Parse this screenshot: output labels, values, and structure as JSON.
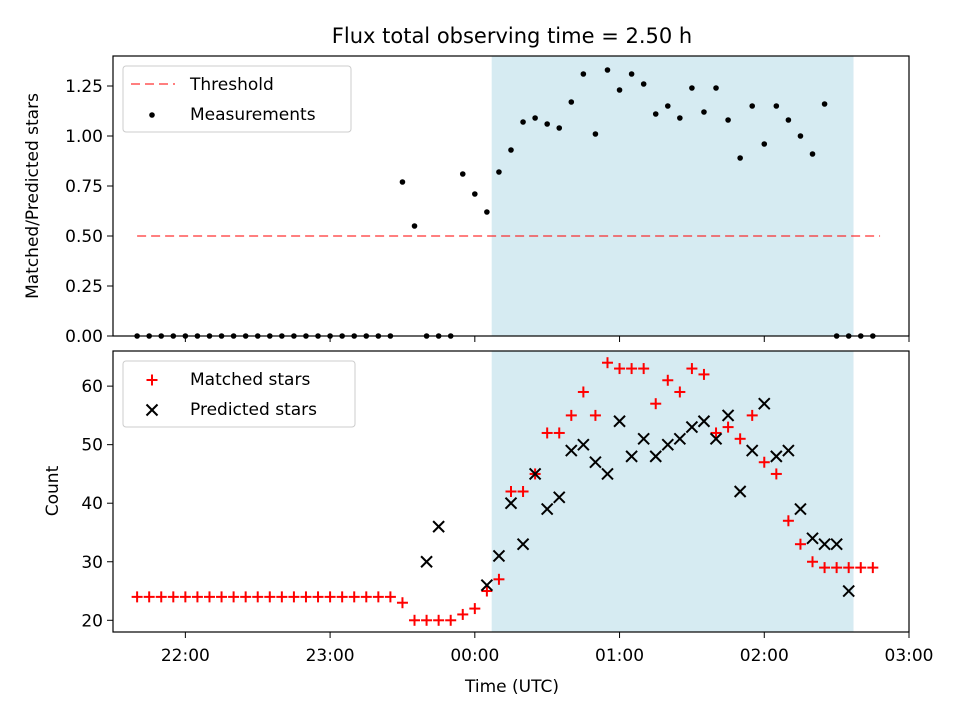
{
  "title": "Flux total observing time = 2.50 h",
  "colors": {
    "shade": "#add8e6",
    "threshold": "#ff0000",
    "measurement": "#000000",
    "matched": "#ff0000",
    "predicted": "#000000"
  },
  "chart_data": [
    {
      "type": "scatter",
      "panel": "top",
      "ylabel": "Matched/Predicted stars",
      "ylim": [
        0,
        1.4
      ],
      "yticks": [
        0.0,
        0.25,
        0.5,
        0.75,
        1.0,
        1.25
      ],
      "ytick_labels": [
        "0.00",
        "0.25",
        "0.50",
        "0.75",
        "1.00",
        "1.25"
      ],
      "xlim": [
        "21:30",
        "03:00"
      ],
      "shaded_range": [
        "00:07",
        "02:37"
      ],
      "legend_position": "upper left",
      "threshold": {
        "name": "Threshold",
        "value": 0.5,
        "x_range": [
          "21:40",
          "02:48"
        ],
        "style": "dashed"
      },
      "series": [
        {
          "name": "Measurements",
          "marker": "dot",
          "x": [
            "21:40",
            "21:45",
            "21:50",
            "21:55",
            "22:00",
            "22:05",
            "22:10",
            "22:15",
            "22:20",
            "22:25",
            "22:30",
            "22:35",
            "22:40",
            "22:45",
            "22:50",
            "22:55",
            "23:00",
            "23:05",
            "23:10",
            "23:15",
            "23:20",
            "23:25",
            "23:30",
            "23:35",
            "23:40",
            "23:45",
            "23:50",
            "23:55",
            "00:00",
            "00:05",
            "00:10",
            "00:15",
            "00:20",
            "00:25",
            "00:30",
            "00:35",
            "00:40",
            "00:45",
            "00:50",
            "00:55",
            "01:00",
            "01:05",
            "01:10",
            "01:15",
            "01:20",
            "01:25",
            "01:30",
            "01:35",
            "01:40",
            "01:45",
            "01:50",
            "01:55",
            "02:00",
            "02:05",
            "02:10",
            "02:15",
            "02:20",
            "02:25",
            "02:30",
            "02:35",
            "02:40",
            "02:45"
          ],
          "y": [
            0,
            0,
            0,
            0,
            0,
            0,
            0,
            0,
            0,
            0,
            0,
            0,
            0,
            0,
            0,
            0,
            0,
            0,
            0,
            0,
            0,
            0,
            0.77,
            0.55,
            0,
            0,
            0,
            0.81,
            0.71,
            0.62,
            0.82,
            0.93,
            1.07,
            1.09,
            1.06,
            1.04,
            1.17,
            1.31,
            1.01,
            1.33,
            1.23,
            1.31,
            1.26,
            1.11,
            1.15,
            1.09,
            1.24,
            1.12,
            1.24,
            1.08,
            0.89,
            1.15,
            0.96,
            1.15,
            1.08,
            1.0,
            0.91,
            1.16,
            0,
            0,
            0,
            0
          ]
        }
      ]
    },
    {
      "type": "scatter",
      "panel": "bottom",
      "xlabel": "Time (UTC)",
      "ylabel": "Count",
      "ylim": [
        18,
        66
      ],
      "yticks": [
        20,
        30,
        40,
        50,
        60
      ],
      "xlim": [
        "21:30",
        "03:00"
      ],
      "xticks": [
        "22:00",
        "23:00",
        "00:00",
        "01:00",
        "02:00",
        "03:00"
      ],
      "shaded_range": [
        "00:07",
        "02:37"
      ],
      "legend_position": "upper left",
      "series": [
        {
          "name": "Matched stars",
          "marker": "plus",
          "x": [
            "21:40",
            "21:45",
            "21:50",
            "21:55",
            "22:00",
            "22:05",
            "22:10",
            "22:15",
            "22:20",
            "22:25",
            "22:30",
            "22:35",
            "22:40",
            "22:45",
            "22:50",
            "22:55",
            "23:00",
            "23:05",
            "23:10",
            "23:15",
            "23:20",
            "23:25",
            "23:30",
            "23:35",
            "23:40",
            "23:45",
            "23:50",
            "23:55",
            "00:00",
            "00:05",
            "00:10",
            "00:15",
            "00:20",
            "00:25",
            "00:30",
            "00:35",
            "00:40",
            "00:45",
            "00:50",
            "00:55",
            "01:00",
            "01:05",
            "01:10",
            "01:15",
            "01:20",
            "01:25",
            "01:30",
            "01:35",
            "01:40",
            "01:45",
            "01:50",
            "01:55",
            "02:00",
            "02:05",
            "02:10",
            "02:15",
            "02:20",
            "02:25",
            "02:30",
            "02:35",
            "02:40",
            "02:45"
          ],
          "y": [
            24,
            24,
            24,
            24,
            24,
            24,
            24,
            24,
            24,
            24,
            24,
            24,
            24,
            24,
            24,
            24,
            24,
            24,
            24,
            24,
            24,
            24,
            23,
            20,
            20,
            20,
            20,
            21,
            22,
            25,
            27,
            42,
            42,
            45,
            52,
            52,
            55,
            59,
            55,
            64,
            63,
            63,
            63,
            57,
            61,
            59,
            63,
            62,
            52,
            53,
            51,
            55,
            47,
            45,
            37,
            33,
            30,
            29,
            29,
            29,
            29,
            29
          ]
        },
        {
          "name": "Predicted stars",
          "marker": "x",
          "x": [
            "23:40",
            "23:45",
            "00:05",
            "00:10",
            "00:15",
            "00:20",
            "00:25",
            "00:30",
            "00:35",
            "00:40",
            "00:45",
            "00:50",
            "00:55",
            "01:00",
            "01:05",
            "01:10",
            "01:15",
            "01:20",
            "01:25",
            "01:30",
            "01:35",
            "01:40",
            "01:45",
            "01:50",
            "01:55",
            "02:00",
            "02:05",
            "02:10",
            "02:15",
            "02:20",
            "02:25",
            "02:30",
            "02:35"
          ],
          "y": [
            30,
            36,
            26,
            31,
            40,
            33,
            45,
            39,
            41,
            49,
            50,
            47,
            45,
            54,
            48,
            51,
            48,
            50,
            51,
            53,
            54,
            51,
            55,
            42,
            49,
            57,
            48,
            49,
            39,
            34,
            33,
            33,
            25
          ]
        }
      ]
    }
  ]
}
